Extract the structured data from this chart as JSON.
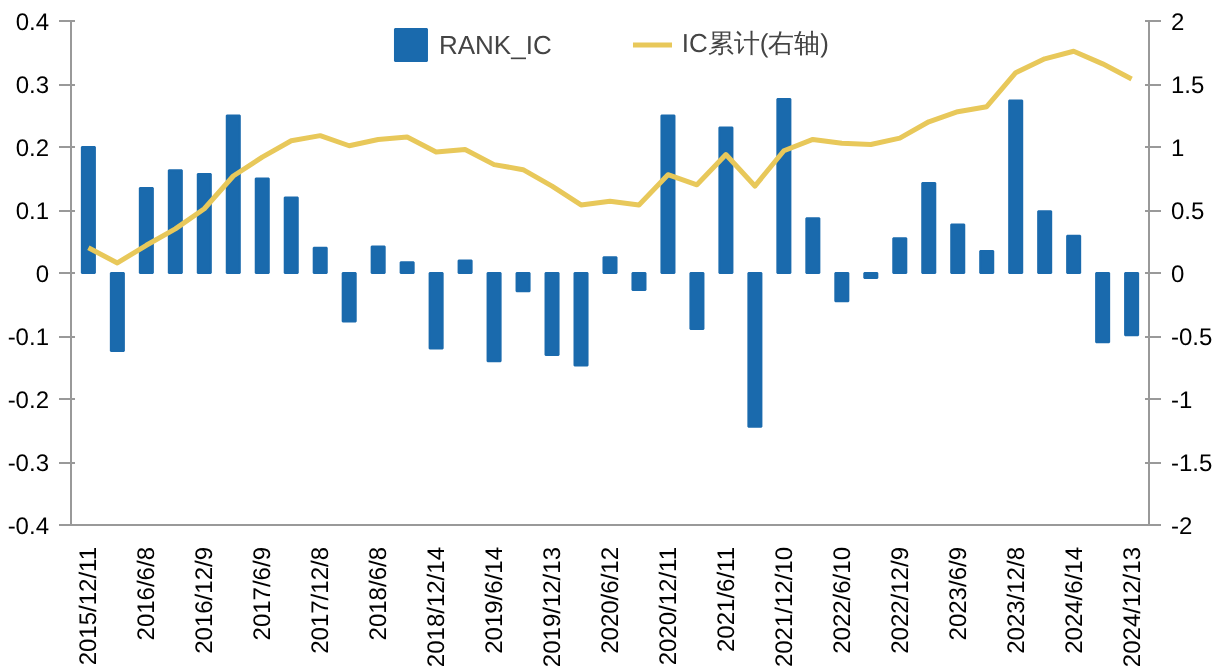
{
  "chart_data": {
    "type": "bar",
    "categories": [
      "2015/12/11",
      null,
      "2016/6/8",
      null,
      "2016/12/9",
      null,
      "2017/6/9",
      null,
      "2017/12/8",
      null,
      "2018/6/8",
      null,
      "2018/12/14",
      null,
      "2019/6/14",
      null,
      "2019/12/13",
      null,
      "2020/6/12",
      null,
      "2020/12/11",
      null,
      "2021/6/11",
      null,
      "2021/12/10",
      null,
      "2022/6/10",
      null,
      "2022/12/9",
      null,
      "2023/6/9",
      null,
      "2023/12/8",
      null,
      "2024/6/14",
      null,
      "2024/12/13"
    ],
    "series": [
      {
        "name": "RANK_IC",
        "color": "#1a6aad",
        "values": [
          0.2,
          -0.124,
          0.135,
          0.163,
          0.157,
          0.25,
          0.15,
          0.12,
          0.04,
          -0.077,
          0.042,
          0.017,
          -0.12,
          0.02,
          -0.14,
          -0.029,
          -0.13,
          -0.147,
          0.025,
          -0.027,
          0.25,
          -0.089,
          0.231,
          -0.244,
          0.276,
          0.087,
          -0.045,
          -0.008,
          0.055,
          0.143,
          0.077,
          0.035,
          0.274,
          0.098,
          0.059,
          -0.11,
          -0.099
        ]
      },
      {
        "name": "IC累计(右轴)",
        "type": "line",
        "axis": "y2",
        "color": "#e8c85a",
        "values": [
          0.2,
          0.08,
          0.22,
          0.35,
          0.51,
          0.77,
          0.92,
          1.05,
          1.09,
          1.01,
          1.06,
          1.08,
          0.96,
          0.98,
          0.86,
          0.82,
          0.69,
          0.54,
          0.57,
          0.54,
          0.78,
          0.7,
          0.94,
          0.69,
          0.97,
          1.06,
          1.03,
          1.02,
          1.07,
          1.2,
          1.28,
          1.32,
          1.59,
          1.7,
          1.76,
          1.66,
          1.54
        ]
      }
    ],
    "ylim": [
      -0.4,
      0.4
    ],
    "yticks": [
      -0.4,
      -0.3,
      -0.2,
      -0.1,
      0,
      0.1,
      0.2,
      0.3,
      0.4
    ],
    "y2lim": [
      -2,
      2
    ],
    "y2ticks": [
      -2,
      -1.5,
      -1,
      -0.5,
      0,
      0.5,
      1,
      1.5,
      2
    ],
    "legend": "top",
    "grid": false
  }
}
